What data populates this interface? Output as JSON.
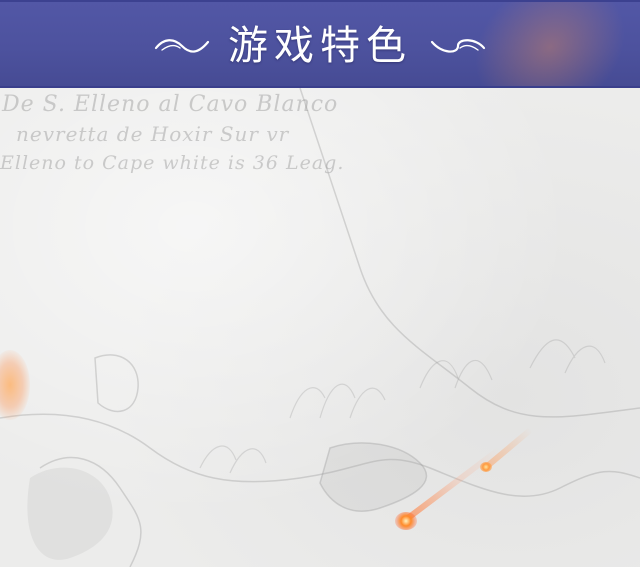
{
  "header": {
    "title": "游戏特色"
  },
  "background": {
    "map_inscription": [
      "De S. Elleno al Cavo Blanco",
      "nevretta de Hoxir Sur vr",
      "Elleno to Cape white is 36 Leag."
    ]
  },
  "colors": {
    "banner": "#4d529e",
    "banner_border": "#3a3f8c",
    "title_text": "#ffffff",
    "parchment": "#ececeb",
    "spark": "#ff8a2a"
  },
  "icons": {
    "left_ornament": "swash-ornament-icon",
    "right_ornament": "swash-ornament-icon"
  }
}
